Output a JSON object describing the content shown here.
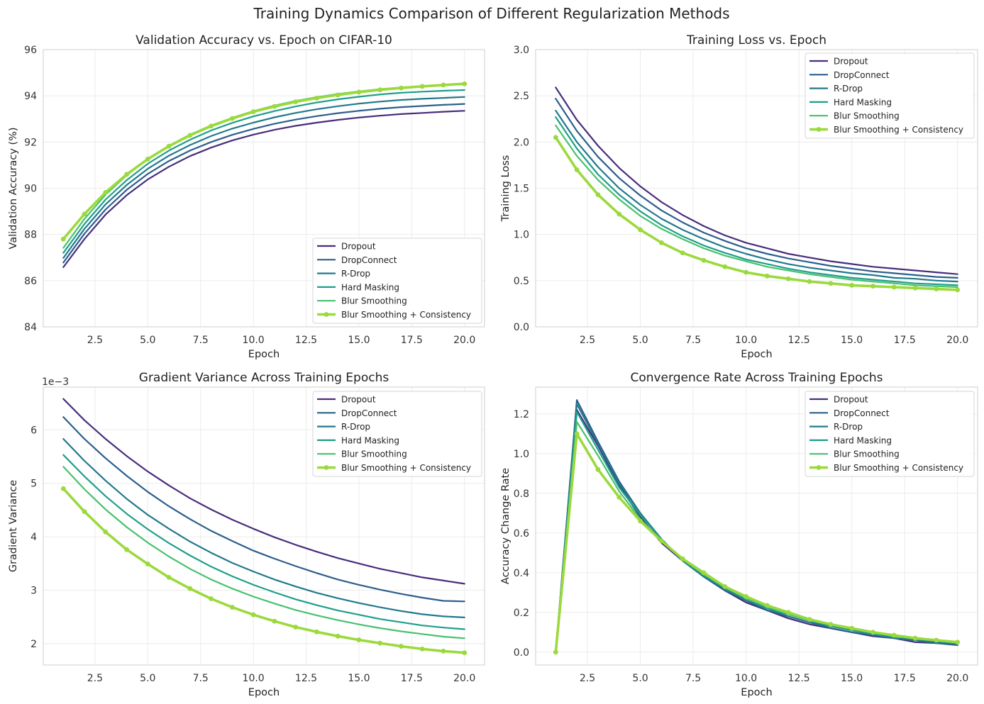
{
  "suptitle": "Training Dynamics Comparison of Different Regularization Methods",
  "series_style": {
    "names": [
      "Dropout",
      "DropConnect",
      "R-Drop",
      "Hard Masking",
      "Blur Smoothing",
      "Blur Smoothing + Consistency"
    ],
    "colors": [
      "#472d7b",
      "#2c5e8c",
      "#21798c",
      "#1f9e89",
      "#47c16e",
      "#9bd93c"
    ],
    "highlighted": "Blur Smoothing + Consistency"
  },
  "chart_data": [
    {
      "type": "line",
      "title": "Validation Accuracy vs. Epoch on CIFAR-10",
      "xlabel": "Epoch",
      "ylabel": "Validation Accuracy (%)",
      "xlim": [
        0.05,
        20.95
      ],
      "ylim": [
        84,
        96
      ],
      "xticks": [
        "2.5",
        "5.0",
        "7.5",
        "10.0",
        "12.5",
        "15.0",
        "17.5",
        "20.0"
      ],
      "yticks": [
        "84",
        "86",
        "88",
        "90",
        "92",
        "94",
        "96"
      ],
      "legend": "lower-right",
      "x": [
        1,
        2,
        3,
        4,
        5,
        6,
        7,
        8,
        9,
        10,
        11,
        12,
        13,
        14,
        15,
        16,
        17,
        18,
        19,
        20
      ],
      "series": [
        {
          "name": "Dropout",
          "values": [
            86.58,
            87.8,
            88.86,
            89.7,
            90.38,
            90.93,
            91.39,
            91.76,
            92.07,
            92.32,
            92.53,
            92.7,
            92.84,
            92.96,
            93.06,
            93.14,
            93.21,
            93.26,
            93.31,
            93.35
          ]
        },
        {
          "name": "DropConnect",
          "values": [
            86.78,
            88.03,
            89.08,
            89.93,
            90.62,
            91.18,
            91.63,
            92.0,
            92.31,
            92.57,
            92.79,
            92.97,
            93.12,
            93.25,
            93.35,
            93.44,
            93.51,
            93.56,
            93.61,
            93.65
          ]
        },
        {
          "name": "R-Drop",
          "values": [
            86.98,
            88.24,
            89.3,
            90.14,
            90.84,
            91.41,
            91.87,
            92.26,
            92.58,
            92.84,
            93.07,
            93.26,
            93.42,
            93.55,
            93.66,
            93.75,
            93.82,
            93.87,
            93.91,
            93.95
          ]
        },
        {
          "name": "Hard Masking",
          "values": [
            87.2,
            88.45,
            89.51,
            90.35,
            91.06,
            91.63,
            92.1,
            92.5,
            92.83,
            93.11,
            93.34,
            93.54,
            93.71,
            93.85,
            93.96,
            94.06,
            94.13,
            94.18,
            94.22,
            94.25
          ]
        },
        {
          "name": "Blur Smoothing",
          "values": [
            87.42,
            88.67,
            89.72,
            90.56,
            91.27,
            91.84,
            92.32,
            92.72,
            93.05,
            93.34,
            93.58,
            93.78,
            93.94,
            94.08,
            94.19,
            94.29,
            94.36,
            94.42,
            94.47,
            94.5
          ]
        },
        {
          "name": "Blur Smoothing + Consistency",
          "values": [
            87.8,
            88.88,
            89.82,
            90.6,
            91.26,
            91.82,
            92.29,
            92.69,
            93.02,
            93.31,
            93.54,
            93.74,
            93.9,
            94.04,
            94.16,
            94.26,
            94.34,
            94.41,
            94.47,
            94.52
          ]
        }
      ]
    },
    {
      "type": "line",
      "title": "Training Loss vs. Epoch",
      "xlabel": "Epoch",
      "ylabel": "Training Loss",
      "xlim": [
        0.05,
        20.95
      ],
      "ylim": [
        0,
        3
      ],
      "xticks": [
        "2.5",
        "5.0",
        "7.5",
        "10.0",
        "12.5",
        "15.0",
        "17.5",
        "20.0"
      ],
      "yticks": [
        "0.0",
        "0.5",
        "1.0",
        "1.5",
        "2.0",
        "2.5",
        "3.0"
      ],
      "legend": "top-right",
      "x": [
        1,
        2,
        3,
        4,
        5,
        6,
        7,
        8,
        9,
        10,
        11,
        12,
        13,
        14,
        15,
        16,
        17,
        18,
        19,
        20
      ],
      "series": [
        {
          "name": "Dropout",
          "values": [
            2.59,
            2.24,
            1.96,
            1.72,
            1.52,
            1.35,
            1.21,
            1.09,
            0.99,
            0.91,
            0.85,
            0.79,
            0.75,
            0.71,
            0.68,
            0.65,
            0.63,
            0.61,
            0.59,
            0.57
          ]
        },
        {
          "name": "DropConnect",
          "values": [
            2.47,
            2.12,
            1.84,
            1.61,
            1.42,
            1.26,
            1.13,
            1.02,
            0.93,
            0.85,
            0.79,
            0.74,
            0.7,
            0.66,
            0.63,
            0.6,
            0.58,
            0.56,
            0.54,
            0.53
          ]
        },
        {
          "name": "R-Drop",
          "values": [
            2.34,
            2.0,
            1.73,
            1.5,
            1.32,
            1.17,
            1.05,
            0.95,
            0.86,
            0.79,
            0.73,
            0.68,
            0.64,
            0.61,
            0.58,
            0.56,
            0.53,
            0.52,
            0.5,
            0.49
          ]
        },
        {
          "name": "Hard Masking",
          "values": [
            2.27,
            1.93,
            1.65,
            1.43,
            1.25,
            1.1,
            0.98,
            0.88,
            0.8,
            0.73,
            0.68,
            0.63,
            0.59,
            0.56,
            0.53,
            0.51,
            0.49,
            0.47,
            0.46,
            0.45
          ]
        },
        {
          "name": "Blur Smoothing",
          "values": [
            2.18,
            1.85,
            1.59,
            1.38,
            1.2,
            1.06,
            0.95,
            0.85,
            0.77,
            0.71,
            0.65,
            0.61,
            0.57,
            0.54,
            0.51,
            0.49,
            0.47,
            0.45,
            0.44,
            0.43
          ]
        },
        {
          "name": "Blur Smoothing + Consistency",
          "values": [
            2.05,
            1.7,
            1.43,
            1.22,
            1.05,
            0.91,
            0.8,
            0.72,
            0.65,
            0.59,
            0.55,
            0.52,
            0.49,
            0.47,
            0.45,
            0.44,
            0.43,
            0.42,
            0.41,
            0.4
          ]
        }
      ]
    },
    {
      "type": "line",
      "title": "Gradient Variance Across Training Epochs",
      "xlabel": "Epoch",
      "ylabel": "Gradient Variance",
      "offset_label": "1e−3",
      "xlim": [
        0.05,
        20.95
      ],
      "ylim": [
        1.6,
        6.8
      ],
      "xticks": [
        "2.5",
        "5.0",
        "7.5",
        "10.0",
        "12.5",
        "15.0",
        "17.5",
        "20.0"
      ],
      "yticks": [
        "2",
        "3",
        "4",
        "5",
        "6"
      ],
      "legend": "top-right",
      "x": [
        1,
        2,
        3,
        4,
        5,
        6,
        7,
        8,
        9,
        10,
        11,
        12,
        13,
        14,
        15,
        16,
        17,
        18,
        19,
        20
      ],
      "series": [
        {
          "name": "Dropout",
          "values": [
            6.58,
            6.18,
            5.83,
            5.51,
            5.22,
            4.96,
            4.72,
            4.51,
            4.32,
            4.15,
            3.99,
            3.85,
            3.72,
            3.6,
            3.5,
            3.4,
            3.32,
            3.24,
            3.18,
            3.12
          ]
        },
        {
          "name": "DropConnect",
          "values": [
            6.24,
            5.83,
            5.47,
            5.14,
            4.84,
            4.57,
            4.33,
            4.11,
            3.92,
            3.74,
            3.59,
            3.45,
            3.32,
            3.2,
            3.1,
            3.01,
            2.93,
            2.86,
            2.8,
            2.79
          ]
        },
        {
          "name": "R-Drop",
          "values": [
            5.83,
            5.42,
            5.05,
            4.71,
            4.41,
            4.15,
            3.91,
            3.7,
            3.51,
            3.35,
            3.2,
            3.07,
            2.95,
            2.85,
            2.76,
            2.68,
            2.61,
            2.55,
            2.51,
            2.49
          ]
        },
        {
          "name": "Hard Masking",
          "values": [
            5.53,
            5.13,
            4.76,
            4.43,
            4.14,
            3.88,
            3.65,
            3.44,
            3.26,
            3.1,
            2.96,
            2.83,
            2.72,
            2.62,
            2.54,
            2.46,
            2.4,
            2.34,
            2.3,
            2.27
          ]
        },
        {
          "name": "Blur Smoothing",
          "values": [
            5.31,
            4.89,
            4.51,
            4.18,
            3.89,
            3.63,
            3.4,
            3.2,
            3.03,
            2.88,
            2.75,
            2.63,
            2.53,
            2.44,
            2.36,
            2.29,
            2.23,
            2.18,
            2.13,
            2.1
          ]
        },
        {
          "name": "Blur Smoothing + Consistency",
          "values": [
            4.9,
            4.47,
            4.09,
            3.76,
            3.49,
            3.24,
            3.03,
            2.84,
            2.68,
            2.54,
            2.42,
            2.31,
            2.22,
            2.14,
            2.07,
            2.01,
            1.95,
            1.9,
            1.86,
            1.83
          ]
        }
      ]
    },
    {
      "type": "line",
      "title": "Convergence Rate Across Training Epochs",
      "xlabel": "Epoch",
      "ylabel": "Accuracy Change Rate",
      "xlim": [
        0.05,
        20.95
      ],
      "ylim": [
        -0.065,
        1.335
      ],
      "xticks": [
        "2.5",
        "5.0",
        "7.5",
        "10.0",
        "12.5",
        "15.0",
        "17.5",
        "20.0"
      ],
      "yticks": [
        "0.0",
        "0.2",
        "0.4",
        "0.6",
        "0.8",
        "1.0",
        "1.2"
      ],
      "legend": "top-right",
      "x": [
        1,
        2,
        3,
        4,
        5,
        6,
        7,
        8,
        9,
        10,
        11,
        12,
        13,
        14,
        15,
        16,
        17,
        18,
        19,
        20
      ],
      "series": [
        {
          "name": "Dropout",
          "values": [
            0.0,
            1.22,
            1.04,
            0.84,
            0.68,
            0.55,
            0.46,
            0.38,
            0.31,
            0.25,
            0.21,
            0.17,
            0.14,
            0.12,
            0.1,
            0.08,
            0.07,
            0.05,
            0.045,
            0.04
          ]
        },
        {
          "name": "DropConnect",
          "values": [
            0.0,
            1.27,
            1.06,
            0.86,
            0.7,
            0.56,
            0.46,
            0.38,
            0.31,
            0.26,
            0.21,
            0.18,
            0.15,
            0.12,
            0.1,
            0.085,
            0.07,
            0.06,
            0.045,
            0.035
          ]
        },
        {
          "name": "R-Drop",
          "values": [
            0.0,
            1.25,
            1.05,
            0.85,
            0.7,
            0.57,
            0.46,
            0.38,
            0.32,
            0.26,
            0.22,
            0.18,
            0.15,
            0.13,
            0.11,
            0.09,
            0.07,
            0.06,
            0.05,
            0.04
          ]
        },
        {
          "name": "Hard Masking",
          "values": [
            0.0,
            1.21,
            1.02,
            0.83,
            0.69,
            0.57,
            0.46,
            0.39,
            0.32,
            0.27,
            0.22,
            0.19,
            0.16,
            0.13,
            0.11,
            0.09,
            0.08,
            0.065,
            0.055,
            0.045
          ]
        },
        {
          "name": "Blur Smoothing",
          "values": [
            0.0,
            1.16,
            0.99,
            0.81,
            0.67,
            0.56,
            0.47,
            0.39,
            0.33,
            0.27,
            0.23,
            0.19,
            0.16,
            0.14,
            0.12,
            0.1,
            0.08,
            0.07,
            0.06,
            0.05
          ]
        },
        {
          "name": "Blur Smoothing + Consistency",
          "values": [
            0.0,
            1.1,
            0.92,
            0.78,
            0.66,
            0.56,
            0.47,
            0.4,
            0.33,
            0.28,
            0.235,
            0.2,
            0.165,
            0.14,
            0.12,
            0.1,
            0.085,
            0.07,
            0.06,
            0.05
          ]
        }
      ]
    }
  ]
}
